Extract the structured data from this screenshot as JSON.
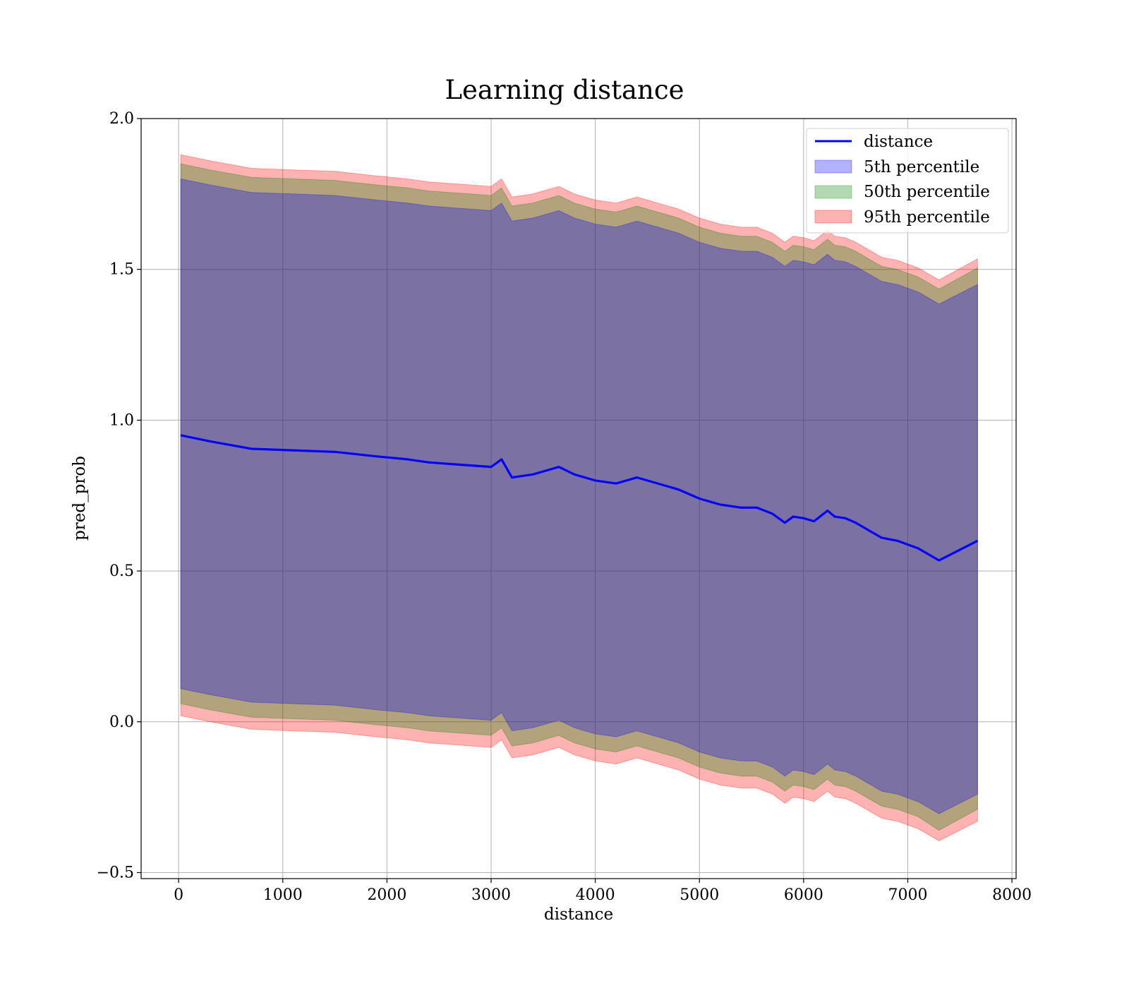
{
  "chart_data": {
    "type": "area",
    "title": "Learning distance",
    "xlabel": "distance",
    "ylabel": "pred_prob",
    "xlim": [
      -360,
      8040
    ],
    "ylim": [
      -0.52,
      2.0
    ],
    "xticks": [
      0,
      1000,
      2000,
      3000,
      4000,
      5000,
      6000,
      7000,
      8000
    ],
    "xtick_labels": [
      "0",
      "1000",
      "2000",
      "3000",
      "4000",
      "5000",
      "6000",
      "7000",
      "8000"
    ],
    "yticks": [
      -0.5,
      0.0,
      0.5,
      1.0,
      1.5,
      2.0
    ],
    "ytick_labels": [
      "−0.5",
      "0.0",
      "0.5",
      "1.0",
      "1.5",
      "2.0"
    ],
    "grid": true,
    "legend_position": "upper right",
    "colors": {
      "line": "#0000ff",
      "band_5": "#0000ff",
      "band_50": "#008000",
      "band_95": "#ff0000"
    },
    "x": [
      20,
      300,
      700,
      1100,
      1500,
      1900,
      2200,
      2400,
      2600,
      2800,
      3000,
      3100,
      3200,
      3400,
      3650,
      3800,
      4000,
      4200,
      4400,
      4600,
      4800,
      5000,
      5200,
      5400,
      5550,
      5700,
      5820,
      5900,
      6000,
      6100,
      6230,
      6300,
      6400,
      6500,
      6600,
      6750,
      6900,
      7100,
      7300,
      7670
    ],
    "series": [
      {
        "name": "distance",
        "type": "line",
        "values": [
          0.95,
          0.93,
          0.905,
          0.9,
          0.895,
          0.88,
          0.87,
          0.86,
          0.855,
          0.85,
          0.845,
          0.87,
          0.81,
          0.82,
          0.845,
          0.82,
          0.8,
          0.79,
          0.81,
          0.79,
          0.77,
          0.74,
          0.72,
          0.71,
          0.71,
          0.69,
          0.66,
          0.68,
          0.675,
          0.665,
          0.7,
          0.68,
          0.675,
          0.66,
          0.64,
          0.61,
          0.6,
          0.575,
          0.535,
          0.6
        ]
      },
      {
        "name": "5th percentile",
        "type": "band",
        "lower": [
          0.11,
          0.09,
          0.065,
          0.06,
          0.055,
          0.04,
          0.03,
          0.02,
          0.015,
          0.01,
          0.005,
          0.03,
          -0.03,
          -0.02,
          0.005,
          -0.02,
          -0.04,
          -0.05,
          -0.03,
          -0.05,
          -0.07,
          -0.1,
          -0.12,
          -0.13,
          -0.13,
          -0.15,
          -0.18,
          -0.16,
          -0.165,
          -0.175,
          -0.14,
          -0.16,
          -0.165,
          -0.18,
          -0.2,
          -0.23,
          -0.24,
          -0.265,
          -0.305,
          -0.24
        ],
        "upper": [
          1.8,
          1.78,
          1.755,
          1.75,
          1.745,
          1.73,
          1.72,
          1.71,
          1.705,
          1.7,
          1.695,
          1.72,
          1.66,
          1.67,
          1.695,
          1.67,
          1.65,
          1.64,
          1.66,
          1.64,
          1.62,
          1.59,
          1.57,
          1.56,
          1.56,
          1.54,
          1.51,
          1.53,
          1.525,
          1.515,
          1.55,
          1.53,
          1.525,
          1.51,
          1.49,
          1.46,
          1.45,
          1.425,
          1.385,
          1.45
        ]
      },
      {
        "name": "50th percentile",
        "type": "band",
        "lower": [
          0.06,
          0.04,
          0.015,
          0.01,
          0.005,
          -0.01,
          -0.02,
          -0.03,
          -0.035,
          -0.04,
          -0.045,
          -0.02,
          -0.08,
          -0.07,
          -0.045,
          -0.07,
          -0.09,
          -0.1,
          -0.08,
          -0.1,
          -0.12,
          -0.15,
          -0.17,
          -0.18,
          -0.18,
          -0.2,
          -0.23,
          -0.21,
          -0.215,
          -0.225,
          -0.19,
          -0.21,
          -0.215,
          -0.23,
          -0.25,
          -0.28,
          -0.29,
          -0.315,
          -0.36,
          -0.29
        ],
        "upper": [
          1.85,
          1.83,
          1.805,
          1.8,
          1.795,
          1.78,
          1.77,
          1.76,
          1.755,
          1.75,
          1.745,
          1.77,
          1.71,
          1.72,
          1.745,
          1.72,
          1.7,
          1.69,
          1.71,
          1.69,
          1.67,
          1.64,
          1.62,
          1.61,
          1.61,
          1.59,
          1.56,
          1.58,
          1.575,
          1.565,
          1.6,
          1.58,
          1.575,
          1.56,
          1.54,
          1.51,
          1.5,
          1.475,
          1.435,
          1.505
        ]
      },
      {
        "name": "95th percentile",
        "type": "band",
        "lower": [
          0.02,
          0.0,
          -0.025,
          -0.03,
          -0.035,
          -0.05,
          -0.06,
          -0.07,
          -0.075,
          -0.08,
          -0.085,
          -0.06,
          -0.12,
          -0.11,
          -0.085,
          -0.11,
          -0.13,
          -0.14,
          -0.12,
          -0.14,
          -0.16,
          -0.19,
          -0.21,
          -0.22,
          -0.22,
          -0.24,
          -0.27,
          -0.25,
          -0.255,
          -0.265,
          -0.23,
          -0.25,
          -0.255,
          -0.27,
          -0.29,
          -0.32,
          -0.33,
          -0.355,
          -0.395,
          -0.33
        ],
        "upper": [
          1.88,
          1.86,
          1.835,
          1.83,
          1.825,
          1.81,
          1.8,
          1.79,
          1.785,
          1.78,
          1.775,
          1.8,
          1.74,
          1.75,
          1.775,
          1.75,
          1.73,
          1.72,
          1.74,
          1.72,
          1.7,
          1.67,
          1.65,
          1.64,
          1.64,
          1.62,
          1.59,
          1.61,
          1.605,
          1.595,
          1.63,
          1.61,
          1.605,
          1.59,
          1.57,
          1.54,
          1.53,
          1.505,
          1.465,
          1.535
        ]
      }
    ],
    "legend": [
      "distance",
      "5th percentile",
      "50th percentile",
      "95th percentile"
    ]
  }
}
